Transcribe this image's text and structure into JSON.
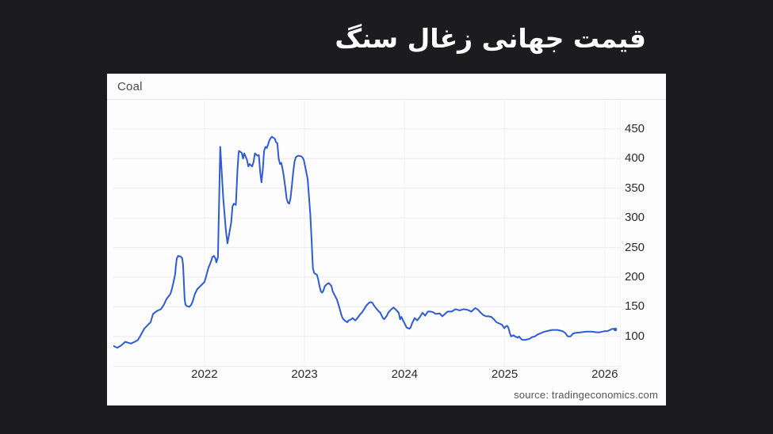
{
  "page": {
    "background_color": "#1c1c1e",
    "title": "قیمت جهانی زغال سنگ"
  },
  "chart_data": {
    "type": "line",
    "title": "Coal",
    "source": "source: tradingeconomics.com",
    "legend": false,
    "grid": true,
    "x_ticks": [
      2022,
      2023,
      2024,
      2025,
      2026
    ],
    "y_ticks": [
      450,
      400,
      350,
      300,
      250,
      200,
      150,
      100
    ],
    "x_domain": [
      2021.09,
      2026.16
    ],
    "y_domain": [
      49,
      498
    ],
    "line_color": "#2e5cd6",
    "grid_color_h": "#ececec",
    "grid_color_v": "#f1f1f1",
    "axis_color": "#d9d9d9",
    "series": [
      {
        "name": "Coal",
        "points": [
          [
            2021.09,
            84
          ],
          [
            2021.129,
            81
          ],
          [
            2021.169,
            85
          ],
          [
            2021.208,
            91
          ],
          [
            2021.264,
            88
          ],
          [
            2021.303,
            91
          ],
          [
            2021.335,
            94
          ],
          [
            2021.359,
            101
          ],
          [
            2021.398,
            113
          ],
          [
            2021.438,
            120
          ],
          [
            2021.462,
            124
          ],
          [
            2021.486,
            138
          ],
          [
            2021.525,
            143
          ],
          [
            2021.565,
            146
          ],
          [
            2021.596,
            154
          ],
          [
            2021.62,
            163
          ],
          [
            2021.644,
            168
          ],
          [
            2021.66,
            172
          ],
          [
            2021.676,
            181
          ],
          [
            2021.691,
            192
          ],
          [
            2021.707,
            205
          ],
          [
            2021.715,
            219
          ],
          [
            2021.723,
            231
          ],
          [
            2021.737,
            236
          ],
          [
            2021.76,
            235
          ],
          [
            2021.778,
            232
          ],
          [
            2021.786,
            221
          ],
          [
            2021.802,
            163
          ],
          [
            2021.81,
            154
          ],
          [
            2021.826,
            151
          ],
          [
            2021.85,
            150
          ],
          [
            2021.866,
            153
          ],
          [
            2021.882,
            159
          ],
          [
            2021.905,
            172
          ],
          [
            2021.929,
            180
          ],
          [
            2022.0,
            192
          ],
          [
            2022.016,
            201
          ],
          [
            2022.04,
            216
          ],
          [
            2022.055,
            222
          ],
          [
            2022.071,
            229
          ],
          [
            2022.079,
            234
          ],
          [
            2022.095,
            236
          ],
          [
            2022.111,
            231
          ],
          [
            2022.119,
            225
          ],
          [
            2022.135,
            234
          ],
          [
            2022.158,
            420
          ],
          [
            2022.188,
            333
          ],
          [
            2022.214,
            279
          ],
          [
            2022.23,
            257
          ],
          [
            2022.267,
            292
          ],
          [
            2022.28,
            319
          ],
          [
            2022.293,
            324
          ],
          [
            2022.314,
            322
          ],
          [
            2022.33,
            380
          ],
          [
            2022.341,
            409
          ],
          [
            2022.346,
            413
          ],
          [
            2022.372,
            410
          ],
          [
            2022.386,
            400
          ],
          [
            2022.398,
            409
          ],
          [
            2022.425,
            398
          ],
          [
            2022.438,
            387
          ],
          [
            2022.451,
            391
          ],
          [
            2022.477,
            387
          ],
          [
            2022.491,
            395
          ],
          [
            2022.504,
            409
          ],
          [
            2022.53,
            405
          ],
          [
            2022.544,
            406
          ],
          [
            2022.557,
            377
          ],
          [
            2022.57,
            360
          ],
          [
            2022.583,
            382
          ],
          [
            2022.596,
            413
          ],
          [
            2022.61,
            420
          ],
          [
            2022.623,
            418
          ],
          [
            2022.636,
            424
          ],
          [
            2022.649,
            431
          ],
          [
            2022.663,
            435
          ],
          [
            2022.675,
            437
          ],
          [
            2022.689,
            435
          ],
          [
            2022.702,
            434
          ],
          [
            2022.715,
            428
          ],
          [
            2022.728,
            426
          ],
          [
            2022.742,
            400
          ],
          [
            2022.755,
            391
          ],
          [
            2022.768,
            393
          ],
          [
            2022.781,
            382
          ],
          [
            2022.794,
            369
          ],
          [
            2022.808,
            351
          ],
          [
            2022.821,
            333
          ],
          [
            2022.834,
            326
          ],
          [
            2022.847,
            324
          ],
          [
            2022.86,
            333
          ],
          [
            2022.874,
            355
          ],
          [
            2022.887,
            377
          ],
          [
            2022.9,
            395
          ],
          [
            2022.913,
            402
          ],
          [
            2022.926,
            404
          ],
          [
            2022.94,
            405
          ],
          [
            2022.966,
            404
          ],
          [
            2022.979,
            402
          ],
          [
            2022.992,
            398
          ],
          [
            2023.006,
            387
          ],
          [
            2023.019,
            376
          ],
          [
            2023.032,
            365
          ],
          [
            2023.058,
            306
          ],
          [
            2023.071,
            261
          ],
          [
            2023.077,
            239
          ],
          [
            2023.084,
            215
          ],
          [
            2023.097,
            207
          ],
          [
            2023.124,
            204
          ],
          [
            2023.137,
            196
          ],
          [
            2023.15,
            185
          ],
          [
            2023.163,
            176
          ],
          [
            2023.177,
            174
          ],
          [
            2023.19,
            178
          ],
          [
            2023.203,
            185
          ],
          [
            2023.229,
            189
          ],
          [
            2023.243,
            190
          ],
          [
            2023.269,
            185
          ],
          [
            2023.282,
            176
          ],
          [
            2023.309,
            167
          ],
          [
            2023.322,
            163
          ],
          [
            2023.335,
            156
          ],
          [
            2023.348,
            149
          ],
          [
            2023.362,
            140
          ],
          [
            2023.375,
            133
          ],
          [
            2023.388,
            129
          ],
          [
            2023.401,
            127
          ],
          [
            2023.428,
            124
          ],
          [
            2023.441,
            127
          ],
          [
            2023.467,
            129
          ],
          [
            2023.48,
            131
          ],
          [
            2023.507,
            127
          ],
          [
            2023.52,
            129
          ],
          [
            2023.546,
            135
          ],
          [
            2023.559,
            138
          ],
          [
            2023.573,
            140
          ],
          [
            2023.599,
            147
          ],
          [
            2023.612,
            151
          ],
          [
            2023.639,
            156
          ],
          [
            2023.658,
            158
          ],
          [
            2023.678,
            157
          ],
          [
            2023.691,
            153
          ],
          [
            2023.718,
            147
          ],
          [
            2023.744,
            142
          ],
          [
            2023.757,
            140
          ],
          [
            2023.783,
            131
          ],
          [
            2023.796,
            129
          ],
          [
            2023.823,
            135
          ],
          [
            2023.836,
            140
          ],
          [
            2023.862,
            145
          ],
          [
            2023.889,
            149
          ],
          [
            2023.915,
            145
          ],
          [
            2023.941,
            140
          ],
          [
            2023.955,
            129
          ],
          [
            2023.968,
            133
          ],
          [
            2023.994,
            124
          ],
          [
            2024.02,
            115
          ],
          [
            2024.047,
            113
          ],
          [
            2024.06,
            115
          ],
          [
            2024.074,
            122
          ],
          [
            2024.1,
            131
          ],
          [
            2024.126,
            127
          ],
          [
            2024.153,
            133
          ],
          [
            2024.179,
            140
          ],
          [
            2024.206,
            135
          ],
          [
            2024.232,
            142
          ],
          [
            2024.258,
            142
          ],
          [
            2024.285,
            141
          ],
          [
            2024.311,
            138
          ],
          [
            2024.351,
            139
          ],
          [
            2024.377,
            134
          ],
          [
            2024.404,
            138
          ],
          [
            2024.43,
            142
          ],
          [
            2024.47,
            142
          ],
          [
            2024.509,
            146
          ],
          [
            2024.549,
            144
          ],
          [
            2024.589,
            146
          ],
          [
            2024.628,
            145
          ],
          [
            2024.668,
            142
          ],
          [
            2024.694,
            146
          ],
          [
            2024.707,
            148
          ],
          [
            2024.734,
            145
          ],
          [
            2024.76,
            140
          ],
          [
            2024.787,
            136
          ],
          [
            2024.813,
            134
          ],
          [
            2024.839,
            134
          ],
          [
            2024.866,
            133
          ],
          [
            2024.892,
            129
          ],
          [
            2024.918,
            124
          ],
          [
            2024.944,
            122
          ],
          [
            2024.971,
            120
          ],
          [
            2024.997,
            114
          ],
          [
            2025.011,
            117
          ],
          [
            2025.024,
            118
          ],
          [
            2025.037,
            115
          ],
          [
            2025.051,
            106
          ],
          [
            2025.064,
            100
          ],
          [
            2025.09,
            102
          ],
          [
            2025.104,
            100
          ],
          [
            2025.13,
            98
          ],
          [
            2025.143,
            100
          ],
          [
            2025.169,
            95
          ],
          [
            2025.196,
            94
          ],
          [
            2025.222,
            95
          ],
          [
            2025.248,
            96
          ],
          [
            2025.275,
            99
          ],
          [
            2025.301,
            100
          ],
          [
            2025.327,
            103
          ],
          [
            2025.354,
            105
          ],
          [
            2025.38,
            107
          ],
          [
            2025.42,
            109
          ],
          [
            2025.473,
            111
          ],
          [
            2025.525,
            111
          ],
          [
            2025.552,
            110
          ],
          [
            2025.578,
            109
          ],
          [
            2025.604,
            106
          ],
          [
            2025.631,
            100
          ],
          [
            2025.657,
            100
          ],
          [
            2025.684,
            105
          ],
          [
            2025.71,
            106
          ],
          [
            2025.762,
            107
          ],
          [
            2025.815,
            108
          ],
          [
            2025.868,
            108
          ],
          [
            2025.921,
            107
          ],
          [
            2025.947,
            107
          ],
          [
            2025.973,
            108
          ],
          [
            2026.0,
            109
          ],
          [
            2026.026,
            109
          ],
          [
            2026.052,
            111
          ],
          [
            2026.078,
            113
          ],
          [
            2026.105,
            112
          ]
        ]
      }
    ]
  }
}
